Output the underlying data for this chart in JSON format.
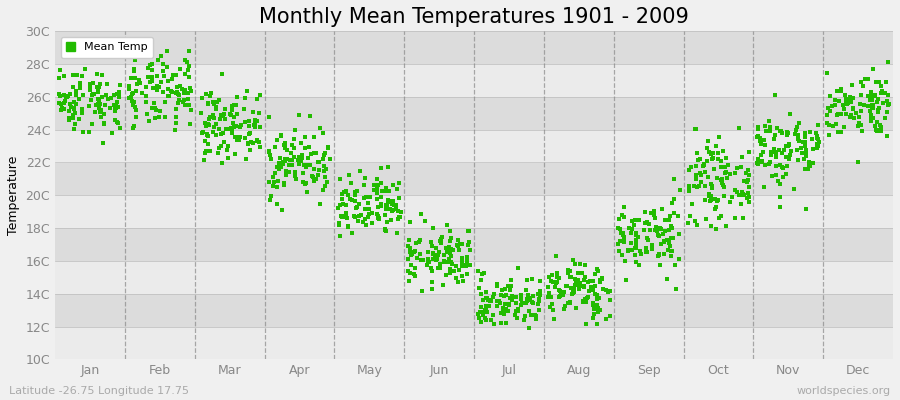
{
  "title": "Monthly Mean Temperatures 1901 - 2009",
  "ylabel": "Temperature",
  "xlabel_labels": [
    "Jan",
    "Feb",
    "Mar",
    "Apr",
    "May",
    "Jun",
    "Jul",
    "Aug",
    "Sep",
    "Oct",
    "Nov",
    "Dec"
  ],
  "ylim": [
    10,
    30
  ],
  "yticks": [
    10,
    12,
    14,
    16,
    18,
    20,
    22,
    24,
    26,
    28,
    30
  ],
  "ytick_labels": [
    "10C",
    "12C",
    "14C",
    "16C",
    "18C",
    "20C",
    "22C",
    "24C",
    "26C",
    "28C",
    "30C"
  ],
  "dot_color": "#22BB00",
  "dot_size": 5,
  "background_color": "#F0F0F0",
  "stripe_light": "#EBEBEB",
  "stripe_dark": "#DCDCDC",
  "legend_label": "Mean Temp",
  "subtitle": "Latitude -26.75 Longitude 17.75",
  "watermark": "worldspecies.org",
  "title_fontsize": 15,
  "label_fontsize": 9,
  "monthly_means": [
    25.8,
    26.2,
    24.3,
    22.0,
    19.2,
    16.2,
    13.5,
    14.2,
    17.5,
    20.8,
    22.8,
    25.5
  ],
  "monthly_stds": [
    1.0,
    1.1,
    1.0,
    1.1,
    1.0,
    0.9,
    0.8,
    0.9,
    1.1,
    1.2,
    1.2,
    1.0
  ],
  "seed": 42,
  "n_years": 109,
  "dashed_color": "#888888",
  "tick_color": "#888888"
}
